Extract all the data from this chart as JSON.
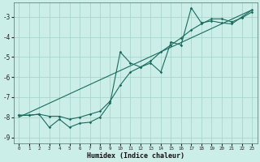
{
  "xlabel": "Humidex (Indice chaleur)",
  "xlim": [
    -0.5,
    23.5
  ],
  "ylim": [
    -9.3,
    -2.3
  ],
  "yticks": [
    -9,
    -8,
    -7,
    -6,
    -5,
    -4,
    -3
  ],
  "xticks": [
    0,
    1,
    2,
    3,
    4,
    5,
    6,
    7,
    8,
    9,
    10,
    11,
    12,
    13,
    14,
    15,
    16,
    17,
    18,
    19,
    20,
    21,
    22,
    23
  ],
  "bg_color": "#cceee8",
  "grid_color": "#aad4ce",
  "line_color": "#1a6b5e",
  "line1_x": [
    0,
    1,
    2,
    3,
    4,
    5,
    6,
    7,
    8,
    9,
    10,
    11,
    12,
    13,
    14,
    15,
    16,
    17,
    18,
    19,
    20,
    21,
    22,
    23
  ],
  "line1_y": [
    -7.9,
    -7.9,
    -7.85,
    -8.5,
    -8.1,
    -8.5,
    -8.3,
    -8.25,
    -8.0,
    -7.3,
    -4.75,
    -5.3,
    -5.5,
    -5.3,
    -5.75,
    -4.25,
    -4.4,
    -2.55,
    -3.3,
    -3.2,
    -3.3,
    -3.35,
    -3.0,
    -2.65
  ],
  "line2_x": [
    0,
    1,
    2,
    3,
    4,
    5,
    6,
    7,
    8,
    9,
    10,
    11,
    12,
    13,
    14,
    15,
    16,
    17,
    18,
    19,
    20,
    21,
    22,
    23
  ],
  "line2_y": [
    -7.9,
    -7.9,
    -7.85,
    -7.95,
    -7.95,
    -8.1,
    -8.0,
    -7.85,
    -7.7,
    -7.2,
    -6.4,
    -5.75,
    -5.5,
    -5.2,
    -4.75,
    -4.4,
    -4.05,
    -3.65,
    -3.35,
    -3.1,
    -3.1,
    -3.25,
    -3.05,
    -2.75
  ],
  "line3_x": [
    0,
    23
  ],
  "line3_y": [
    -8.0,
    -2.65
  ]
}
